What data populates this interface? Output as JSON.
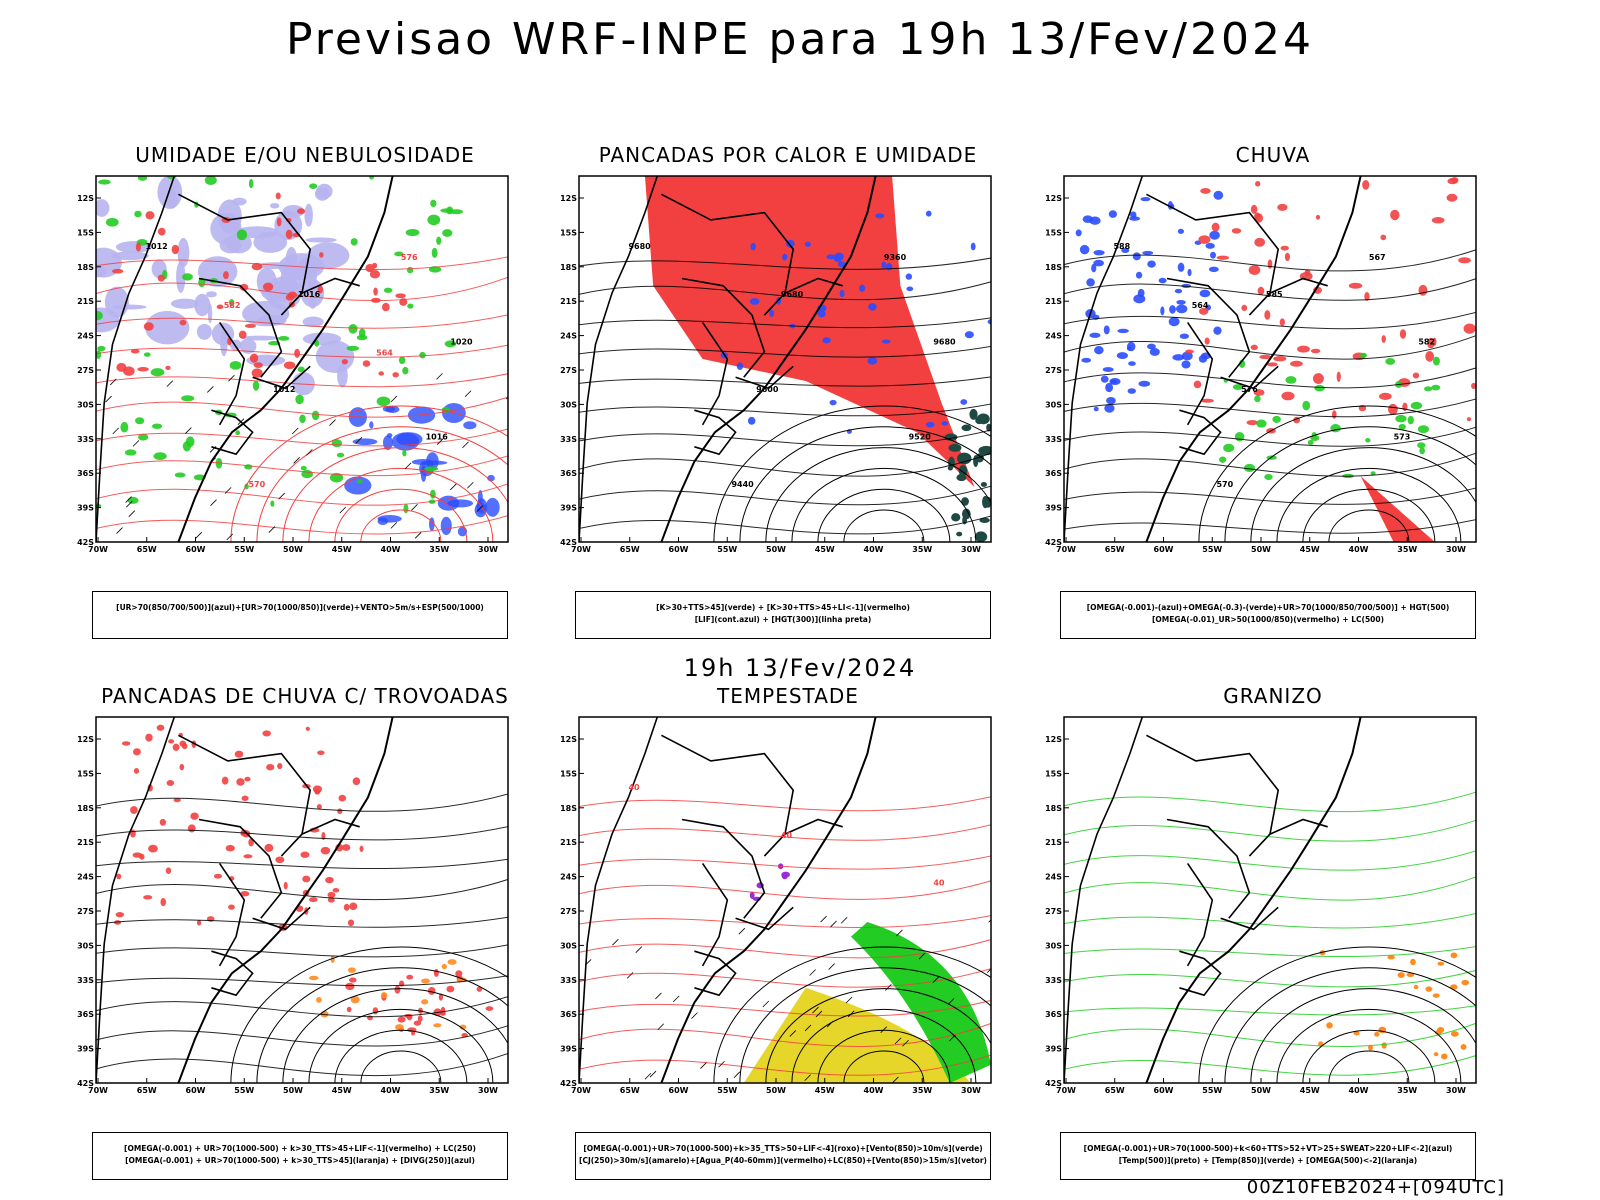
{
  "main_title": "Previsao WRF-INPE  para 19h 13/Fev/2024",
  "mid_title": "19h 13/Fev/2024",
  "footer": "00Z10FEB2024+[094UTC]",
  "lat_labels": [
    "12S",
    "15S",
    "18S",
    "21S",
    "24S",
    "27S",
    "30S",
    "33S",
    "36S",
    "39S",
    "42S"
  ],
  "lon_labels": [
    "70W",
    "65W",
    "60W",
    "55W",
    "50W",
    "45W",
    "40W",
    "35W",
    "30W"
  ],
  "panels": [
    {
      "id": "umidade",
      "title": "UMIDADE E/OU NEBULOSIDADE",
      "legend": [
        "[UR>70(850/700/500)](azul)+[UR>70(1000/850)](verde)+VENTO>5m/s+ESP(500/1000)"
      ],
      "contour_labels": [
        "1012",
        "1016",
        "1020",
        "1012",
        "1016",
        "570",
        "576",
        "582",
        "564"
      ]
    },
    {
      "id": "pancadas_calor",
      "title": "PANCADAS POR CALOR E UMIDADE",
      "legend": [
        "[K>30+TTS>45](verde) + [K>30+TTS>45+LI<-1](vermelho)",
        "[LIF](cont.azul) + [HGT(300)](linha preta)"
      ],
      "contour_labels": [
        "9680",
        "9680",
        "9680",
        "9600",
        "9520",
        "9440",
        "9360"
      ]
    },
    {
      "id": "chuva",
      "title": "CHUVA",
      "legend": [
        "[OMEGA(-0.001)-(azul)+OMEGA(-0.3)-(verde)+UR>70(1000/850/700/500)] + HGT(500)",
        "[OMEGA(-0.01)_UR>50(1000/850)(vermelho) + LC(500)"
      ],
      "contour_labels": [
        "588",
        "585",
        "582",
        "576",
        "573",
        "570",
        "567",
        "564"
      ]
    },
    {
      "id": "pancadas_chuva",
      "title": "PANCADAS DE CHUVA C/ TROVOADAS",
      "legend": [
        "[OMEGA(-0.001) + UR>70(1000-500) + k>30_TTS>45+LIF<-1](vermelho) + LC(250)",
        "[OMEGA(-0.001) + UR>70(1000-500) + k>30_TTS>45](laranja) + [DIVG(250)](azul)"
      ],
      "contour_labels": []
    },
    {
      "id": "tempestade",
      "title": "TEMPESTADE",
      "legend": [
        "[OMEGA(-0.001)+UR>70(1000-500)+k>35_TTS>50+LIF<-4](roxo)+[Vento(850)>10m/s](verde)",
        "[CJ(250)>30m/s](amarelo)+[Agua_P(40-60mm)](vermelho)+LC(850)+[Vento(850)>15m/s](vetor)"
      ],
      "contour_labels": [
        "40",
        "40",
        "40"
      ]
    },
    {
      "id": "granizo",
      "title": "GRANIZO",
      "legend": [
        "[OMEGA(-0.001)+UR>70(1000-500)+k<60+TTS>52+VT>25+SWEAT>220+LIF<-2](azul)",
        "[Temp(500)](preto) + [Temp(850)](verde) + [OMEGA(500)<-2](laranja)"
      ],
      "contour_labels": []
    }
  ],
  "colors": {
    "blue": "#2a4cff",
    "green": "#22cc22",
    "red": "#f24040",
    "lavender": "#b7b4f0",
    "teal": "#1f4a44",
    "yellow": "#e6d62a",
    "orange": "#ff8a1e",
    "purple": "#9a2bd8"
  }
}
